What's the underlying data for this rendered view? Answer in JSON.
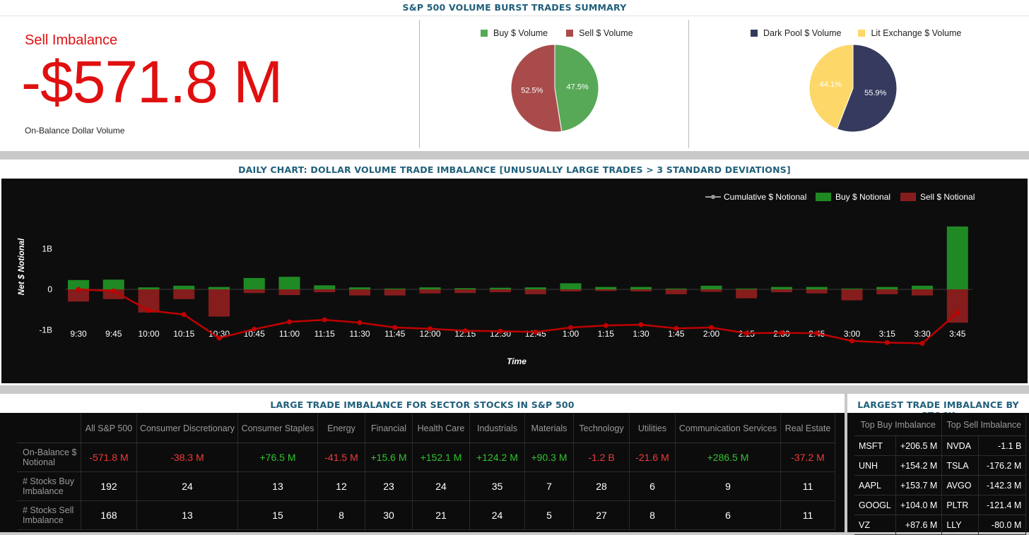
{
  "summary": {
    "title": "S&P 500 VOLUME BURST TRADES SUMMARY",
    "imbalance_label": "Sell Imbalance",
    "imbalance_value": "-$571.8 M",
    "imbalance_caption": "On-Balance Dollar Volume",
    "buy_sell_pie": {
      "legend": [
        {
          "label": "Buy $ Volume",
          "color": "#57a957"
        },
        {
          "label": "Sell $ Volume",
          "color": "#a94b4b"
        }
      ],
      "slices": [
        {
          "label": "Buy $ Volume",
          "value": 47.5,
          "text": "47.5%",
          "color": "#57a957"
        },
        {
          "label": "Sell $ Volume",
          "value": 52.5,
          "text": "52.5%",
          "color": "#a94b4b"
        }
      ]
    },
    "dark_lit_pie": {
      "legend": [
        {
          "label": "Dark Pool $ Volume",
          "color": "#363a5e"
        },
        {
          "label": "Lit Exchange $ Volume",
          "color": "#fdd868"
        }
      ],
      "slices": [
        {
          "label": "Dark Pool $ Volume",
          "value": 55.9,
          "text": "55.9%",
          "color": "#363a5e"
        },
        {
          "label": "Lit Exchange $ Volume",
          "value": 44.1,
          "text": "44.1%",
          "color": "#fdd868"
        }
      ]
    }
  },
  "chart": {
    "title": "DAILY CHART: DOLLAR VOLUME TRADE IMBALANCE [UNUSUALLY LARGE TRADES > 3 STANDARD DEVIATIONS]"
  },
  "chart_data": {
    "type": "bar",
    "xlabel": "Time",
    "ylabel": "Net $ Notional",
    "y_ticks": [
      "1B",
      "0",
      "-1B"
    ],
    "y_tick_values": [
      1,
      0,
      -1
    ],
    "ylim": [
      -1.2,
      1.55
    ],
    "y_unit": "B",
    "legend_position": "top-right",
    "categories": [
      "9:30",
      "9:45",
      "10:00",
      "10:15",
      "10:30",
      "10:45",
      "11:00",
      "11:15",
      "11:30",
      "11:45",
      "12:00",
      "12:15",
      "12:30",
      "12:45",
      "1:00",
      "1:15",
      "1:30",
      "1:45",
      "2:00",
      "2:15",
      "2:30",
      "2:45",
      "3:00",
      "3:15",
      "3:30",
      "3:45"
    ],
    "series": [
      {
        "name": "Cumulative $ Notional",
        "kind": "line",
        "color": "#c00000",
        "values": [
          0.0,
          -0.04,
          -0.52,
          -0.62,
          -1.2,
          -0.98,
          -0.8,
          -0.75,
          -0.82,
          -0.94,
          -0.97,
          -1.02,
          -1.03,
          -1.05,
          -0.94,
          -0.89,
          -0.87,
          -0.96,
          -0.94,
          -1.08,
          -1.07,
          -1.08,
          -1.27,
          -1.31,
          -1.33,
          -0.58
        ]
      },
      {
        "name": "Buy $ Notional",
        "kind": "bar",
        "color": "#1f8a24",
        "values": [
          0.23,
          0.24,
          0.05,
          0.09,
          0.06,
          0.28,
          0.31,
          0.1,
          0.05,
          0.02,
          0.05,
          0.03,
          0.04,
          0.05,
          0.15,
          0.06,
          0.06,
          0.02,
          0.09,
          0.02,
          0.06,
          0.06,
          0.02,
          0.06,
          0.09,
          1.55
        ]
      },
      {
        "name": "Sell $ Notional",
        "kind": "bar",
        "color": "#861d1d",
        "values": [
          -0.3,
          -0.24,
          -0.57,
          -0.24,
          -0.67,
          -0.09,
          -0.14,
          -0.07,
          -0.15,
          -0.15,
          -0.1,
          -0.09,
          -0.07,
          -0.12,
          -0.05,
          -0.04,
          -0.05,
          -0.12,
          -0.06,
          -0.22,
          -0.07,
          -0.1,
          -0.27,
          -0.12,
          -0.15,
          -0.82
        ]
      }
    ]
  },
  "sector": {
    "title": "LARGE TRADE IMBALANCE FOR SECTOR STOCKS IN S&P 500",
    "columns": [
      {
        "label": "All S&P 500",
        "w": 78
      },
      {
        "label": "Consumer Discretionary",
        "w": 142
      },
      {
        "label": "Consumer Staples",
        "w": 112
      },
      {
        "label": "Energy",
        "w": 66
      },
      {
        "label": "Financial",
        "w": 66
      },
      {
        "label": "Health Care",
        "w": 80
      },
      {
        "label": "Industrials",
        "w": 77
      },
      {
        "label": "Materials",
        "w": 68
      },
      {
        "label": "Technology",
        "w": 78
      },
      {
        "label": "Utilities",
        "w": 64
      },
      {
        "label": "Communication Services",
        "w": 148
      },
      {
        "label": "Real Estate",
        "w": 76
      }
    ],
    "rows": [
      {
        "label": "On-Balance $ Notional",
        "colored": true,
        "cells": [
          "-571.8 M",
          "-38.3 M",
          "+76.5 M",
          "-41.5 M",
          "+15.6 M",
          "+152.1 M",
          "+124.2 M",
          "+90.3 M",
          "-1.2 B",
          "-21.6 M",
          "+286.5 M",
          "-37.2 M"
        ]
      },
      {
        "label": "# Stocks Buy Imbalance",
        "colored": false,
        "cells": [
          "192",
          "24",
          "13",
          "12",
          "23",
          "24",
          "35",
          "7",
          "28",
          "6",
          "9",
          "11"
        ]
      },
      {
        "label": "# Stocks Sell Imbalance",
        "colored": false,
        "cells": [
          "168",
          "13",
          "15",
          "8",
          "30",
          "21",
          "24",
          "5",
          "27",
          "8",
          "6",
          "11"
        ]
      }
    ]
  },
  "stocks": {
    "title": "LARGEST TRADE IMBALANCE BY STOCK",
    "buy_header": "Top Buy Imbalance",
    "sell_header": "Top Sell Imbalance",
    "rows": [
      {
        "buy_sym": "MSFT",
        "buy_val": "+206.5 M",
        "sell_sym": "NVDA",
        "sell_val": "-1.1 B"
      },
      {
        "buy_sym": "UNH",
        "buy_val": "+154.2 M",
        "sell_sym": "TSLA",
        "sell_val": "-176.2 M"
      },
      {
        "buy_sym": "AAPL",
        "buy_val": "+153.7 M",
        "sell_sym": "AVGO",
        "sell_val": "-142.3 M"
      },
      {
        "buy_sym": "GOOGL",
        "buy_val": "+104.0 M",
        "sell_sym": "PLTR",
        "sell_val": "-121.4 M"
      },
      {
        "buy_sym": "VZ",
        "buy_val": "+87.6 M",
        "sell_sym": "LLY",
        "sell_val": "-80.0 M"
      }
    ]
  }
}
